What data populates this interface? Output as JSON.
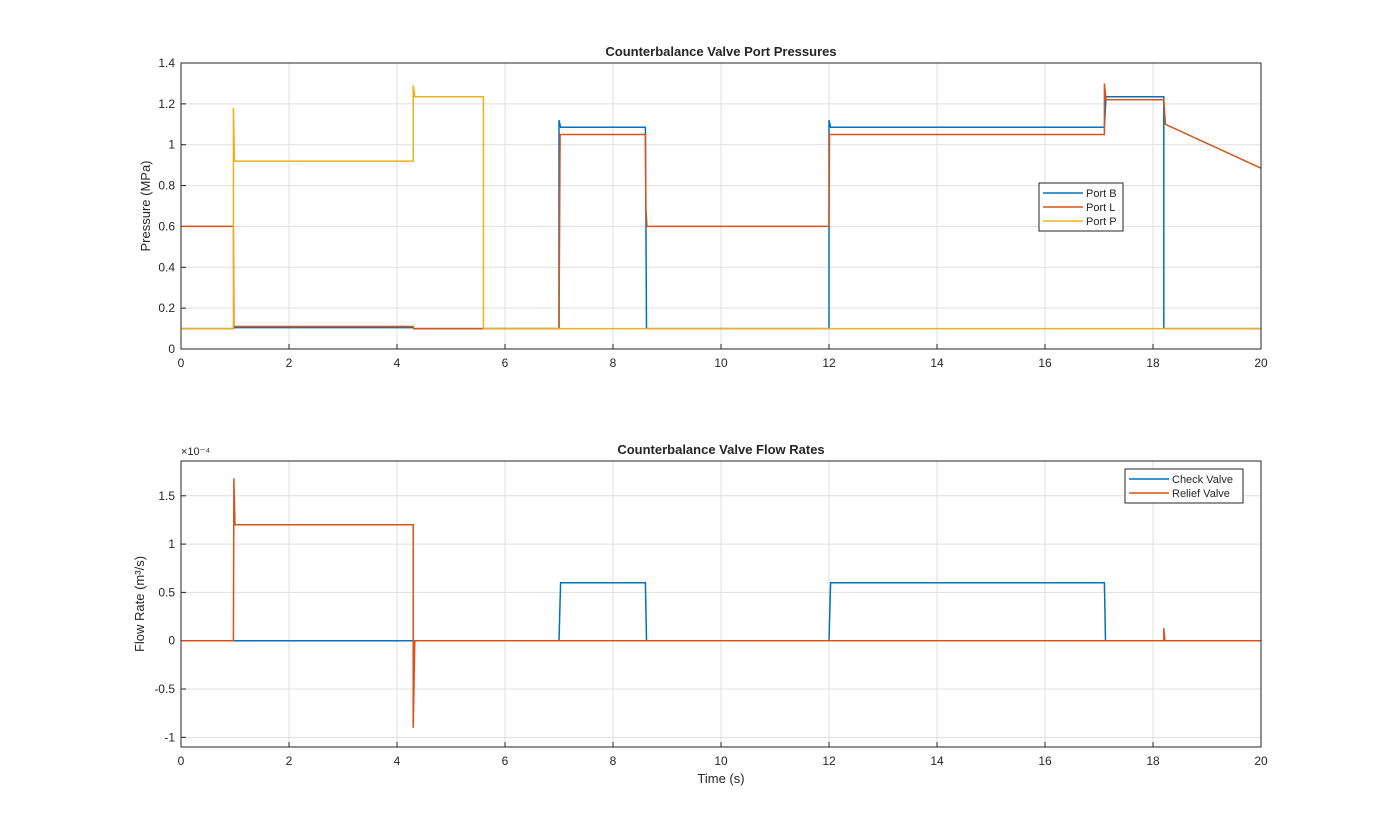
{
  "chart_data": [
    {
      "type": "line",
      "title": "Counterbalance Valve Port Pressures",
      "xlabel": "",
      "ylabel": "Pressure (MPa)",
      "xlim": [
        0,
        20
      ],
      "ylim": [
        0,
        1.4
      ],
      "grid": true,
      "legend_position": "right-middle",
      "xticks": [
        0,
        2,
        4,
        6,
        8,
        10,
        12,
        14,
        16,
        18,
        20
      ],
      "yticks": [
        0,
        0.2,
        0.4,
        0.6,
        0.8,
        1,
        1.2,
        1.4
      ],
      "series": [
        {
          "name": "Port B",
          "color": "#0072BD",
          "points": [
            [
              0,
              0.1
            ],
            [
              0.97,
              0.1
            ],
            [
              0.99,
              0.105
            ],
            [
              4.3,
              0.105
            ],
            [
              4.31,
              0.1
            ],
            [
              7.0,
              0.1
            ],
            [
              7.0,
              1.12
            ],
            [
              7.03,
              1.085
            ],
            [
              8.6,
              1.085
            ],
            [
              8.62,
              0.1
            ],
            [
              12,
              0.1
            ],
            [
              12,
              1.12
            ],
            [
              12.03,
              1.085
            ],
            [
              17.1,
              1.085
            ],
            [
              17.13,
              1.235
            ],
            [
              18.0,
              1.235
            ],
            [
              18.2,
              1.235
            ],
            [
              18.2,
              0.1
            ],
            [
              20,
              0.1
            ]
          ]
        },
        {
          "name": "Port L",
          "color": "#D95319",
          "points": [
            [
              0,
              0.6
            ],
            [
              0.97,
              0.6
            ],
            [
              0.98,
              0.11
            ],
            [
              4.3,
              0.11
            ],
            [
              4.31,
              0.1
            ],
            [
              7.0,
              0.1
            ],
            [
              7.02,
              1.05
            ],
            [
              8.6,
              1.05
            ],
            [
              8.61,
              0.68
            ],
            [
              8.63,
              0.6
            ],
            [
              12,
              0.6
            ],
            [
              12.01,
              1.05
            ],
            [
              17.1,
              1.05
            ],
            [
              17.1,
              1.3
            ],
            [
              17.13,
              1.22
            ],
            [
              18.2,
              1.22
            ],
            [
              18.23,
              1.1
            ],
            [
              20,
              0.885
            ]
          ]
        },
        {
          "name": "Port P",
          "color": "#EDB120",
          "points": [
            [
              0,
              0.1
            ],
            [
              0.97,
              0.1
            ],
            [
              0.97,
              1.18
            ],
            [
              0.99,
              0.92
            ],
            [
              4.3,
              0.92
            ],
            [
              4.3,
              1.29
            ],
            [
              4.33,
              1.235
            ],
            [
              5.6,
              1.235
            ],
            [
              5.6,
              0.1
            ],
            [
              20,
              0.1
            ]
          ]
        }
      ]
    },
    {
      "type": "line",
      "title": "Counterbalance Valve Flow Rates",
      "xlabel": "Time (s)",
      "ylabel": "Flow Rate (m³/s)",
      "exponent_label": "×10⁻⁴",
      "xlim": [
        0,
        20
      ],
      "ylim": [
        -1.1,
        1.86
      ],
      "grid": true,
      "legend_position": "top-right",
      "xticks": [
        0,
        2,
        4,
        6,
        8,
        10,
        12,
        14,
        16,
        18,
        20
      ],
      "yticks": [
        -1,
        -0.5,
        0,
        0.5,
        1,
        1.5
      ],
      "series": [
        {
          "name": "Check Valve",
          "color": "#0072BD",
          "points": [
            [
              0,
              0
            ],
            [
              7.0,
              0
            ],
            [
              7.03,
              0.6
            ],
            [
              8.6,
              0.6
            ],
            [
              8.62,
              0
            ],
            [
              12,
              0
            ],
            [
              12.03,
              0.6
            ],
            [
              17.1,
              0.6
            ],
            [
              17.12,
              0
            ],
            [
              20,
              0
            ]
          ]
        },
        {
          "name": "Relief Valve",
          "color": "#D95319",
          "points": [
            [
              0,
              0
            ],
            [
              0.97,
              0
            ],
            [
              0.98,
              1.68
            ],
            [
              1.0,
              1.2
            ],
            [
              4.3,
              1.2
            ],
            [
              4.3,
              -0.9
            ],
            [
              4.33,
              0
            ],
            [
              5.5,
              0
            ],
            [
              5.56,
              0
            ],
            [
              18.2,
              0
            ],
            [
              18.2,
              0.13
            ],
            [
              18.22,
              0
            ],
            [
              20,
              0
            ]
          ]
        }
      ]
    }
  ]
}
